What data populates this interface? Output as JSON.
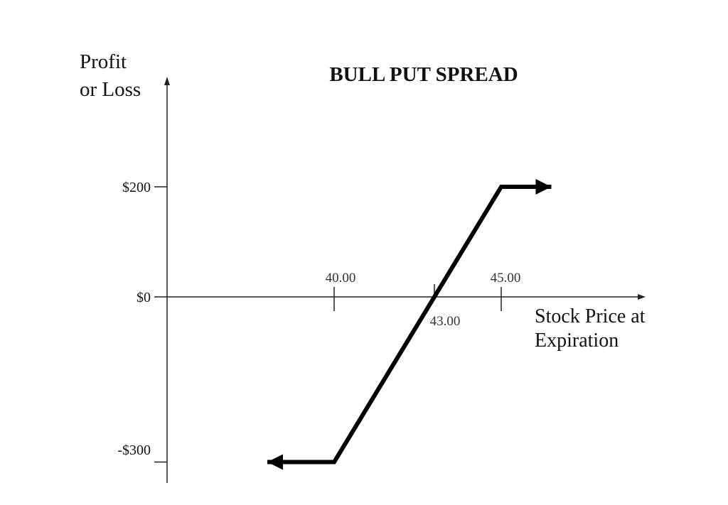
{
  "chart_data": {
    "type": "line",
    "title": "BULL PUT SPREAD",
    "ylabel_lines": [
      "Profit",
      "or Loss"
    ],
    "xlabel_lines": [
      "Stock Price at",
      "Expiration"
    ],
    "y_ticks": [
      {
        "value": 200,
        "label": "$200"
      },
      {
        "value": 0,
        "label": "$0"
      },
      {
        "value": -300,
        "label": "-$300"
      }
    ],
    "x_ticks": [
      {
        "value": 40,
        "label": "40.00",
        "label_side": "above"
      },
      {
        "value": 43,
        "label": "43.00",
        "label_side": "below"
      },
      {
        "value": 45,
        "label": "45.00",
        "label_side": "above"
      }
    ],
    "series": [
      {
        "points": [
          {
            "x": 38,
            "y": -300
          },
          {
            "x": 40,
            "y": -300
          },
          {
            "x": 45,
            "y": 200
          },
          {
            "x": 46.5,
            "y": 200
          }
        ],
        "arrows": "both-ends"
      }
    ],
    "ylim": [
      -330,
      400
    ],
    "grid": false,
    "colors": {
      "line": "#000000",
      "axis": "#222222"
    }
  }
}
